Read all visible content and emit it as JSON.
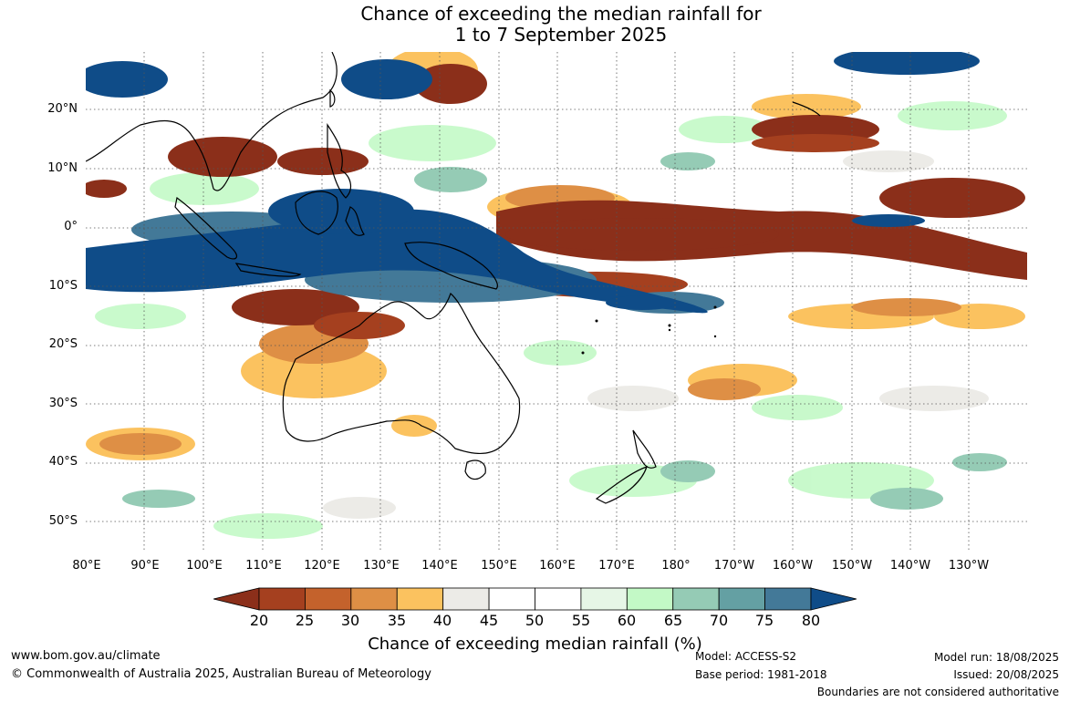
{
  "title": {
    "line1": "Chance of exceeding the median rainfall for",
    "line2": "1 to 7 September 2025"
  },
  "axes": {
    "lat_ticks": [
      "20°N",
      "10°N",
      "0°",
      "10°S",
      "20°S",
      "30°S",
      "40°S",
      "50°S"
    ],
    "lon_ticks": [
      "80°E",
      "90°E",
      "100°E",
      "110°E",
      "120°E",
      "130°E",
      "140°E",
      "150°E",
      "160°E",
      "170°E",
      "180°",
      "170°W",
      "160°W",
      "150°W",
      "140°W",
      "130°W"
    ]
  },
  "colorbar": {
    "title": "Chance of exceeding median rainfall (%)",
    "ticks": [
      "20",
      "25",
      "30",
      "35",
      "40",
      "45",
      "50",
      "55",
      "60",
      "65",
      "70",
      "75",
      "80"
    ],
    "under_color": "#8b2f1a",
    "over_color": "#0f4c88",
    "colors": [
      "#a5401f",
      "#c4622c",
      "#de8f45",
      "#fbc25f",
      "#ecebe7",
      "#ffffff",
      "#ffffff",
      "#e6f6e6",
      "#c3f9c6",
      "#95cbb5",
      "#64a0a3",
      "#437998"
    ]
  },
  "footer": {
    "website": "www.bom.gov.au/climate",
    "copyright": "© Commonwealth of Australia 2025, Australian Bureau of Meteorology",
    "model": "Model: ACCESS-S2",
    "base_period": "Base period: 1981-2018",
    "model_run": "Model run: 18/08/2025",
    "issued": "Issued: 20/08/2025",
    "disclaimer": "Boundaries are not considered authoritative"
  }
}
